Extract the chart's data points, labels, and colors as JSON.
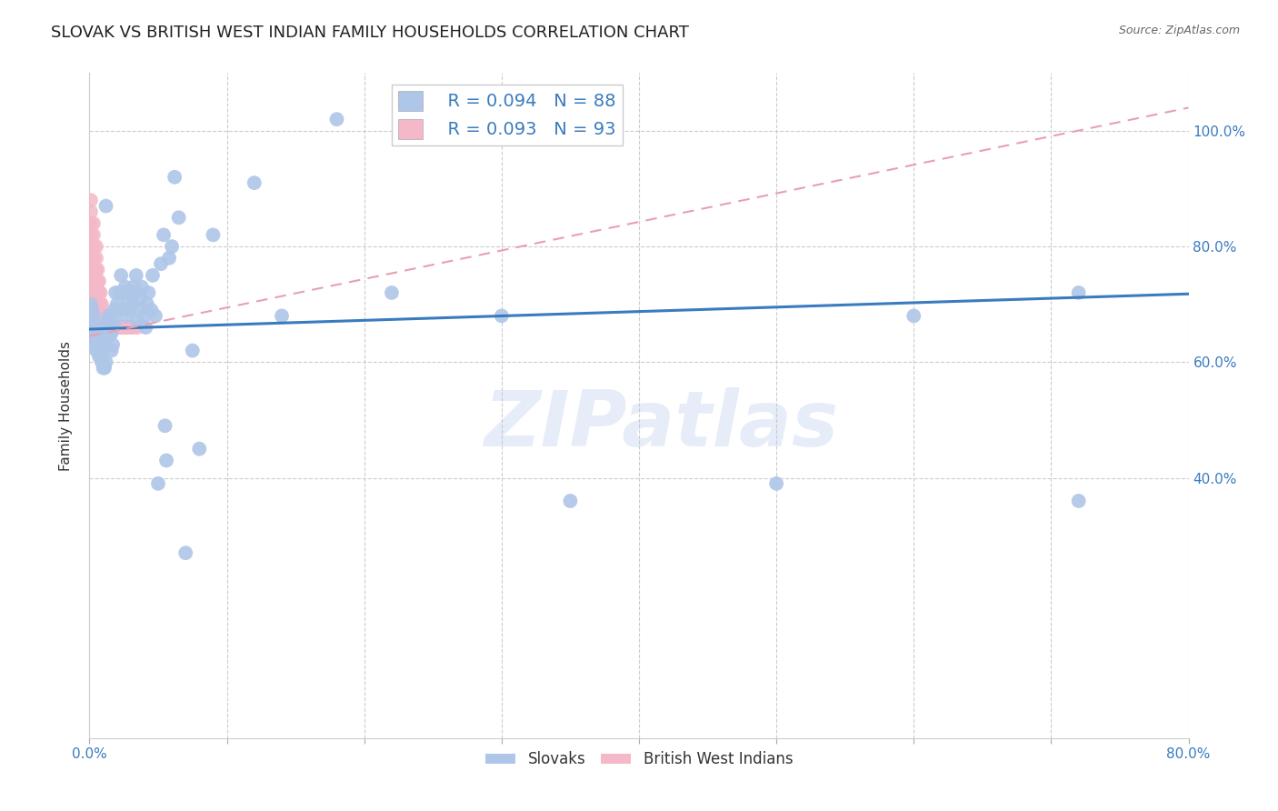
{
  "title": "SLOVAK VS BRITISH WEST INDIAN FAMILY HOUSEHOLDS CORRELATION CHART",
  "source": "Source: ZipAtlas.com",
  "ylabel": "Family Households",
  "xlim": [
    0.0,
    0.8
  ],
  "ylim": [
    -0.05,
    1.1
  ],
  "yticks": [
    0.4,
    0.6,
    0.8,
    1.0
  ],
  "ytick_labels": [
    "40.0%",
    "60.0%",
    "80.0%",
    "100.0%"
  ],
  "grid_yticks": [
    0.4,
    0.6,
    0.8,
    1.0
  ],
  "grid_color": "#cccccc",
  "background_color": "#ffffff",
  "slovak_color": "#aec6e8",
  "bwi_color": "#f4b8c8",
  "slovak_line_color": "#3a7bbf",
  "bwi_line_color": "#e8a0b0",
  "legend_R_slovak": "R = 0.094",
  "legend_N_slovak": "N = 88",
  "legend_R_bwi": "R = 0.093",
  "legend_N_bwi": "N = 93",
  "watermark": "ZIPatlas",
  "title_fontsize": 13,
  "axis_label_fontsize": 11,
  "tick_fontsize": 11,
  "legend_fontsize": 13,
  "slovak_x": [
    0.001,
    0.001,
    0.002,
    0.002,
    0.002,
    0.003,
    0.003,
    0.003,
    0.003,
    0.004,
    0.004,
    0.004,
    0.005,
    0.005,
    0.005,
    0.006,
    0.006,
    0.007,
    0.007,
    0.008,
    0.008,
    0.009,
    0.009,
    0.01,
    0.01,
    0.011,
    0.011,
    0.012,
    0.012,
    0.013,
    0.014,
    0.015,
    0.015,
    0.016,
    0.016,
    0.017,
    0.018,
    0.018,
    0.019,
    0.02,
    0.021,
    0.022,
    0.023,
    0.025,
    0.026,
    0.027,
    0.028,
    0.029,
    0.03,
    0.031,
    0.032,
    0.033,
    0.034,
    0.035,
    0.036,
    0.037,
    0.038,
    0.04,
    0.041,
    0.042,
    0.043,
    0.045,
    0.046,
    0.048,
    0.05,
    0.052,
    0.054,
    0.056,
    0.058,
    0.06,
    0.065,
    0.07,
    0.075,
    0.08,
    0.012,
    0.12,
    0.18,
    0.3,
    0.5,
    0.6,
    0.72,
    0.72,
    0.35,
    0.09,
    0.14,
    0.22,
    0.055,
    0.062
  ],
  "slovak_y": [
    0.68,
    0.7,
    0.66,
    0.68,
    0.69,
    0.64,
    0.65,
    0.67,
    0.68,
    0.63,
    0.64,
    0.65,
    0.62,
    0.64,
    0.66,
    0.62,
    0.65,
    0.61,
    0.63,
    0.61,
    0.64,
    0.6,
    0.62,
    0.59,
    0.63,
    0.59,
    0.63,
    0.6,
    0.64,
    0.67,
    0.68,
    0.65,
    0.67,
    0.62,
    0.65,
    0.63,
    0.67,
    0.69,
    0.72,
    0.7,
    0.69,
    0.72,
    0.75,
    0.72,
    0.73,
    0.68,
    0.7,
    0.69,
    0.72,
    0.7,
    0.73,
    0.72,
    0.75,
    0.67,
    0.69,
    0.71,
    0.73,
    0.68,
    0.66,
    0.7,
    0.72,
    0.69,
    0.75,
    0.68,
    0.39,
    0.77,
    0.82,
    0.43,
    0.78,
    0.8,
    0.85,
    0.27,
    0.62,
    0.45,
    0.87,
    0.91,
    1.02,
    0.68,
    0.39,
    0.68,
    0.72,
    0.36,
    0.36,
    0.82,
    0.68,
    0.72,
    0.49,
    0.92
  ],
  "bwi_x": [
    0.0,
    0.0,
    0.0,
    0.0,
    0.0,
    0.0,
    0.0,
    0.0,
    0.001,
    0.001,
    0.001,
    0.001,
    0.001,
    0.001,
    0.001,
    0.001,
    0.001,
    0.001,
    0.001,
    0.001,
    0.002,
    0.002,
    0.002,
    0.002,
    0.002,
    0.002,
    0.002,
    0.002,
    0.003,
    0.003,
    0.003,
    0.003,
    0.003,
    0.003,
    0.003,
    0.003,
    0.003,
    0.003,
    0.004,
    0.004,
    0.004,
    0.004,
    0.004,
    0.005,
    0.005,
    0.005,
    0.005,
    0.005,
    0.005,
    0.005,
    0.005,
    0.006,
    0.006,
    0.006,
    0.006,
    0.006,
    0.006,
    0.007,
    0.007,
    0.007,
    0.007,
    0.007,
    0.008,
    0.008,
    0.008,
    0.008,
    0.009,
    0.009,
    0.009,
    0.01,
    0.01,
    0.011,
    0.011,
    0.012,
    0.012,
    0.013,
    0.014,
    0.015,
    0.016,
    0.017,
    0.018,
    0.019,
    0.02,
    0.021,
    0.022,
    0.023,
    0.024,
    0.025,
    0.026,
    0.028,
    0.03,
    0.032,
    0.035
  ],
  "bwi_y": [
    0.68,
    0.7,
    0.72,
    0.74,
    0.76,
    0.78,
    0.8,
    0.82,
    0.66,
    0.68,
    0.7,
    0.72,
    0.74,
    0.76,
    0.78,
    0.8,
    0.82,
    0.84,
    0.86,
    0.88,
    0.66,
    0.68,
    0.7,
    0.72,
    0.74,
    0.76,
    0.78,
    0.8,
    0.66,
    0.68,
    0.7,
    0.72,
    0.74,
    0.76,
    0.78,
    0.8,
    0.82,
    0.84,
    0.66,
    0.68,
    0.7,
    0.72,
    0.74,
    0.66,
    0.68,
    0.7,
    0.72,
    0.74,
    0.76,
    0.78,
    0.8,
    0.66,
    0.68,
    0.7,
    0.72,
    0.74,
    0.76,
    0.66,
    0.68,
    0.7,
    0.72,
    0.74,
    0.66,
    0.68,
    0.7,
    0.72,
    0.66,
    0.68,
    0.7,
    0.66,
    0.68,
    0.66,
    0.68,
    0.66,
    0.68,
    0.66,
    0.66,
    0.66,
    0.66,
    0.66,
    0.66,
    0.66,
    0.66,
    0.66,
    0.66,
    0.66,
    0.66,
    0.66,
    0.66,
    0.66,
    0.66,
    0.66,
    0.66
  ],
  "slovak_trend_x": [
    0.0,
    0.8
  ],
  "slovak_trend_y": [
    0.657,
    0.718
  ],
  "bwi_trend_x": [
    0.0,
    0.8
  ],
  "bwi_trend_y": [
    0.645,
    1.04
  ]
}
